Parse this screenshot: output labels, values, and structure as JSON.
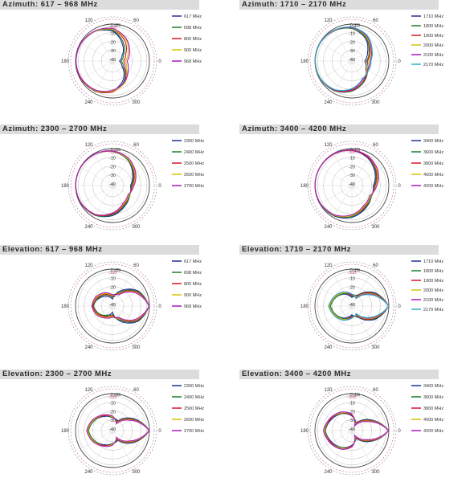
{
  "chart_data": [
    {
      "type": "polar-line",
      "title": "Azimuth: 617 – 968 MHz",
      "plane": "azimuth",
      "angle_labels": [
        "0",
        "60",
        "120",
        "180",
        "240",
        "300"
      ],
      "ring_labels": [
        "0 dBi",
        "-3dB",
        "-10",
        "-20",
        "-30",
        "-40"
      ],
      "rlim": [
        -43,
        0
      ],
      "legend_position": "right",
      "series": [
        {
          "name": "617 MHz",
          "color": "#1f2f9a",
          "values": [
            -35,
            -30,
            -20,
            -8,
            -3,
            -1,
            -0.5,
            -1,
            -3,
            -8,
            -18,
            -30
          ]
        },
        {
          "name": "698 MHz",
          "color": "#1b7f2a",
          "values": [
            -33,
            -28,
            -18,
            -7,
            -3,
            -1,
            -0.5,
            -1,
            -2.5,
            -7,
            -16,
            -28
          ]
        },
        {
          "name": "800 MHz",
          "color": "#d8162a",
          "values": [
            -30,
            -25,
            -15,
            -6,
            -2.5,
            -0.8,
            -0.5,
            -1,
            -3,
            -7,
            -15,
            -26
          ]
        },
        {
          "name": "900 MHz",
          "color": "#d6c200",
          "values": [
            -28,
            -22,
            -13,
            -6,
            -3,
            -1,
            -0.5,
            -1.5,
            -3.5,
            -8,
            -14,
            -24
          ]
        },
        {
          "name": "968 MHz",
          "color": "#a818c4",
          "values": [
            -26,
            -20,
            -12,
            -5,
            -2.5,
            -1,
            -0.5,
            -1.5,
            -4,
            -9,
            -15,
            -22
          ]
        }
      ]
    },
    {
      "type": "polar-line",
      "title": "Azimuth: 1710 – 2170 MHz",
      "plane": "azimuth",
      "angle_labels": [
        "0",
        "60",
        "120",
        "180",
        "240",
        "300"
      ],
      "ring_labels": [
        "0 dBi",
        "-3dB",
        "-10",
        "-20",
        "-30",
        "-40"
      ],
      "rlim": [
        -43,
        0
      ],
      "legend_position": "right",
      "series": [
        {
          "name": "1710 MHz",
          "color": "#1f2f9a",
          "values": [
            -28,
            -22,
            -12,
            -5,
            -2,
            -0.5,
            -0.3,
            -0.8,
            -3,
            -8,
            -16,
            -24
          ]
        },
        {
          "name": "1800 MHz",
          "color": "#1b7f2a",
          "values": [
            -26,
            -20,
            -11,
            -5,
            -2,
            -0.5,
            -0.3,
            -1,
            -3,
            -8,
            -15,
            -22
          ]
        },
        {
          "name": "1900 MHz",
          "color": "#d8162a",
          "values": [
            -25,
            -19,
            -10,
            -4,
            -2,
            -0.5,
            -0.3,
            -1,
            -3.5,
            -9,
            -16,
            -22
          ]
        },
        {
          "name": "2000 MHz",
          "color": "#d6c200",
          "values": [
            -24,
            -18,
            -10,
            -4,
            -1.5,
            -0.5,
            -0.3,
            -1,
            -4,
            -10,
            -18,
            -23
          ]
        },
        {
          "name": "2100 MHz",
          "color": "#a818c4",
          "values": [
            -22,
            -17,
            -9,
            -4,
            -1.5,
            -0.5,
            -0.3,
            -1.2,
            -4,
            -10,
            -18,
            -22
          ]
        },
        {
          "name": "2170 MHz",
          "color": "#2ab3c9",
          "values": [
            -21,
            -16,
            -8,
            -3.5,
            -1.5,
            -0.5,
            -0.3,
            -1.2,
            -4.5,
            -11,
            -19,
            -21
          ]
        }
      ]
    },
    {
      "type": "polar-line",
      "title": "Azimuth: 2300 – 2700 MHz",
      "plane": "azimuth",
      "angle_labels": [
        "0",
        "60",
        "120",
        "180",
        "240",
        "300"
      ],
      "ring_labels": [
        "0 dBi",
        "-3dB",
        "-10",
        "-20",
        "-30",
        "-40"
      ],
      "rlim": [
        -43,
        0
      ],
      "legend_position": "right",
      "series": [
        {
          "name": "2300 MHz",
          "color": "#1f2f9a",
          "values": [
            -22,
            -16,
            -8,
            -3,
            -1,
            -0.3,
            -0.2,
            -0.8,
            -3,
            -8,
            -15,
            -20
          ]
        },
        {
          "name": "2400 MHz",
          "color": "#1b7f2a",
          "values": [
            -21,
            -15,
            -8,
            -3,
            -1,
            -0.3,
            -0.2,
            -1,
            -3,
            -9,
            -16,
            -20
          ]
        },
        {
          "name": "2500 MHz",
          "color": "#d8162a",
          "values": [
            -20,
            -14,
            -7,
            -3,
            -1,
            -0.3,
            -0.2,
            -1,
            -3.5,
            -10,
            -17,
            -21
          ]
        },
        {
          "name": "2600 MHz",
          "color": "#d6c200",
          "values": [
            -19,
            -13,
            -7,
            -2.5,
            -1,
            -0.3,
            -0.2,
            -1.2,
            -4,
            -11,
            -18,
            -21
          ]
        },
        {
          "name": "2700 MHz",
          "color": "#a818c4",
          "values": [
            -18,
            -12,
            -6,
            -2.5,
            -1,
            -0.3,
            -0.2,
            -1.2,
            -4,
            -11,
            -19,
            -22
          ]
        }
      ]
    },
    {
      "type": "polar-line",
      "title": "Azimuth: 3400 – 4200 MHz",
      "plane": "azimuth",
      "angle_labels": [
        "0",
        "60",
        "120",
        "180",
        "240",
        "300"
      ],
      "ring_labels": [
        "0 dBi",
        "-3dB",
        "-10",
        "-20",
        "-30",
        "-40"
      ],
      "rlim": [
        -43,
        0
      ],
      "legend_position": "right",
      "series": [
        {
          "name": "3400 MHz",
          "color": "#1f2f9a",
          "values": [
            -18,
            -12,
            -6,
            -2,
            -0.8,
            -0.2,
            -0.1,
            -0.5,
            -2,
            -6,
            -12,
            -17
          ]
        },
        {
          "name": "3600 MHz",
          "color": "#1b7f2a",
          "values": [
            -17,
            -11,
            -5,
            -2,
            -0.8,
            -0.2,
            -0.1,
            -0.6,
            -2.5,
            -7,
            -13,
            -17
          ]
        },
        {
          "name": "3800 MHz",
          "color": "#d8162a",
          "values": [
            -16,
            -10,
            -5,
            -2,
            -0.8,
            -0.2,
            -0.1,
            -0.7,
            -3,
            -8,
            -14,
            -18
          ]
        },
        {
          "name": "4000 MHz",
          "color": "#d6c200",
          "values": [
            -15,
            -9,
            -4,
            -1.5,
            -0.6,
            -0.2,
            -0.1,
            -0.8,
            -3,
            -8,
            -15,
            -18
          ]
        },
        {
          "name": "4200 MHz",
          "color": "#a818c4",
          "values": [
            -14,
            -8,
            -4,
            -1.5,
            -0.6,
            -0.2,
            -0.1,
            -0.9,
            -3.5,
            -9,
            -16,
            -19
          ]
        }
      ]
    },
    {
      "type": "polar-line",
      "title": "Elevation: 617 – 968 MHz",
      "plane": "elevation",
      "angle_labels": [
        "0",
        "60",
        "120",
        "180",
        "240",
        "300"
      ],
      "ring_labels": [
        "0 dBi",
        "-3dB",
        "-10",
        "-20",
        "-30",
        "-40"
      ],
      "rlim": [
        -43,
        0
      ],
      "legend_position": "right",
      "series": [
        {
          "name": "617 MHz",
          "color": "#1f2f9a",
          "values": [
            -0.5,
            -8,
            -22,
            -35,
            -30,
            -25,
            -20,
            -24,
            -30,
            -36,
            -22,
            -8
          ]
        },
        {
          "name": "698 MHz",
          "color": "#1b7f2a",
          "values": [
            -0.5,
            -9,
            -24,
            -33,
            -28,
            -24,
            -21,
            -25,
            -31,
            -33,
            -24,
            -9
          ]
        },
        {
          "name": "800 MHz",
          "color": "#d8162a",
          "values": [
            -0.4,
            -10,
            -26,
            -32,
            -27,
            -23,
            -20,
            -24,
            -29,
            -32,
            -26,
            -10
          ]
        },
        {
          "name": "900 MHz",
          "color": "#d6c200",
          "values": [
            -0.4,
            -11,
            -27,
            -31,
            -26,
            -22,
            -19,
            -23,
            -28,
            -31,
            -27,
            -11
          ]
        },
        {
          "name": "968 MHz",
          "color": "#a818c4",
          "values": [
            -0.3,
            -12,
            -28,
            -30,
            -25,
            -21,
            -19,
            -22,
            -27,
            -30,
            -28,
            -12
          ]
        }
      ]
    },
    {
      "type": "polar-line",
      "title": "Elevation: 1710 – 2170 MHz",
      "plane": "elevation",
      "angle_labels": [
        "0",
        "60",
        "120",
        "180",
        "240",
        "300"
      ],
      "ring_labels": [
        "0 dBi",
        "-3dB",
        "-10",
        "-20",
        "-30",
        "-40"
      ],
      "rlim": [
        -43,
        0
      ],
      "legend_position": "right",
      "series": [
        {
          "name": "1710 MHz",
          "color": "#1f2f9a",
          "values": [
            -0.3,
            -12,
            -28,
            -33,
            -27,
            -22,
            -18,
            -22,
            -27,
            -33,
            -28,
            -12
          ]
        },
        {
          "name": "1800 MHz",
          "color": "#1b7f2a",
          "values": [
            -0.3,
            -13,
            -29,
            -32,
            -26,
            -22,
            -18,
            -22,
            -26,
            -32,
            -29,
            -13
          ]
        },
        {
          "name": "1900 MHz",
          "color": "#d8162a",
          "values": [
            -0.3,
            -14,
            -30,
            -31,
            -25,
            -21,
            -17,
            -21,
            -25,
            -31,
            -30,
            -14
          ]
        },
        {
          "name": "2000 MHz",
          "color": "#d6c200",
          "values": [
            -0.3,
            -15,
            -31,
            -30,
            -25,
            -21,
            -17,
            -21,
            -25,
            -30,
            -31,
            -15
          ]
        },
        {
          "name": "2100 MHz",
          "color": "#a818c4",
          "values": [
            -0.2,
            -16,
            -32,
            -30,
            -24,
            -20,
            -16,
            -20,
            -24,
            -30,
            -32,
            -16
          ]
        },
        {
          "name": "2170 MHz",
          "color": "#2ab3c9",
          "values": [
            -0.2,
            -17,
            -33,
            -29,
            -24,
            -20,
            -16,
            -20,
            -24,
            -29,
            -33,
            -17
          ]
        }
      ]
    },
    {
      "type": "polar-line",
      "title": "Elevation: 2300 – 2700 MHz",
      "plane": "elevation",
      "angle_labels": [
        "0",
        "60",
        "120",
        "180",
        "240",
        "300"
      ],
      "ring_labels": [
        "0 dBi",
        "-3dB",
        "-10",
        "-20",
        "-30",
        "-40"
      ],
      "rlim": [
        -43,
        0
      ],
      "legend_position": "right",
      "series": [
        {
          "name": "2300 MHz",
          "color": "#1f2f9a",
          "values": [
            -0.2,
            -15,
            -30,
            -28,
            -24,
            -19,
            -15,
            -19,
            -24,
            -28,
            -30,
            -15
          ]
        },
        {
          "name": "2400 MHz",
          "color": "#1b7f2a",
          "values": [
            -0.2,
            -16,
            -31,
            -28,
            -23,
            -19,
            -15,
            -19,
            -23,
            -28,
            -31,
            -16
          ]
        },
        {
          "name": "2500 MHz",
          "color": "#d8162a",
          "values": [
            -0.2,
            -17,
            -32,
            -27,
            -23,
            -18,
            -14,
            -18,
            -23,
            -27,
            -32,
            -17
          ]
        },
        {
          "name": "2600 MHz",
          "color": "#d6c200",
          "values": [
            -0.2,
            -18,
            -33,
            -27,
            -22,
            -18,
            -14,
            -18,
            -22,
            -27,
            -33,
            -18
          ]
        },
        {
          "name": "2700 MHz",
          "color": "#a818c4",
          "values": [
            -0.2,
            -19,
            -34,
            -26,
            -22,
            -17,
            -13,
            -17,
            -22,
            -26,
            -34,
            -19
          ]
        }
      ]
    },
    {
      "type": "polar-line",
      "title": "Elevation: 3400 – 4200 MHz",
      "plane": "elevation",
      "angle_labels": [
        "0",
        "60",
        "120",
        "180",
        "240",
        "300"
      ],
      "ring_labels": [
        "0 dBi",
        "-3dB",
        "-10",
        "-20",
        "-30",
        "-40"
      ],
      "rlim": [
        -43,
        0
      ],
      "legend_position": "right",
      "series": [
        {
          "name": "3400 MHz",
          "color": "#1f2f9a",
          "values": [
            -0.2,
            -18,
            -33,
            -26,
            -20,
            -16,
            -12,
            -16,
            -20,
            -26,
            -33,
            -18
          ]
        },
        {
          "name": "3600 MHz",
          "color": "#1b7f2a",
          "values": [
            -0.2,
            -19,
            -34,
            -25,
            -20,
            -15,
            -12,
            -15,
            -20,
            -25,
            -34,
            -19
          ]
        },
        {
          "name": "3800 MHz",
          "color": "#d8162a",
          "values": [
            -0.2,
            -20,
            -35,
            -25,
            -19,
            -15,
            -11,
            -15,
            -19,
            -25,
            -35,
            -20
          ]
        },
        {
          "name": "4000 MHz",
          "color": "#d6c200",
          "values": [
            -0.2,
            -21,
            -36,
            -24,
            -19,
            -14,
            -11,
            -14,
            -19,
            -24,
            -36,
            -21
          ]
        },
        {
          "name": "4200 MHz",
          "color": "#a818c4",
          "values": [
            -0.2,
            -22,
            -37,
            -24,
            -18,
            -14,
            -10,
            -14,
            -18,
            -24,
            -37,
            -22
          ]
        }
      ]
    }
  ]
}
